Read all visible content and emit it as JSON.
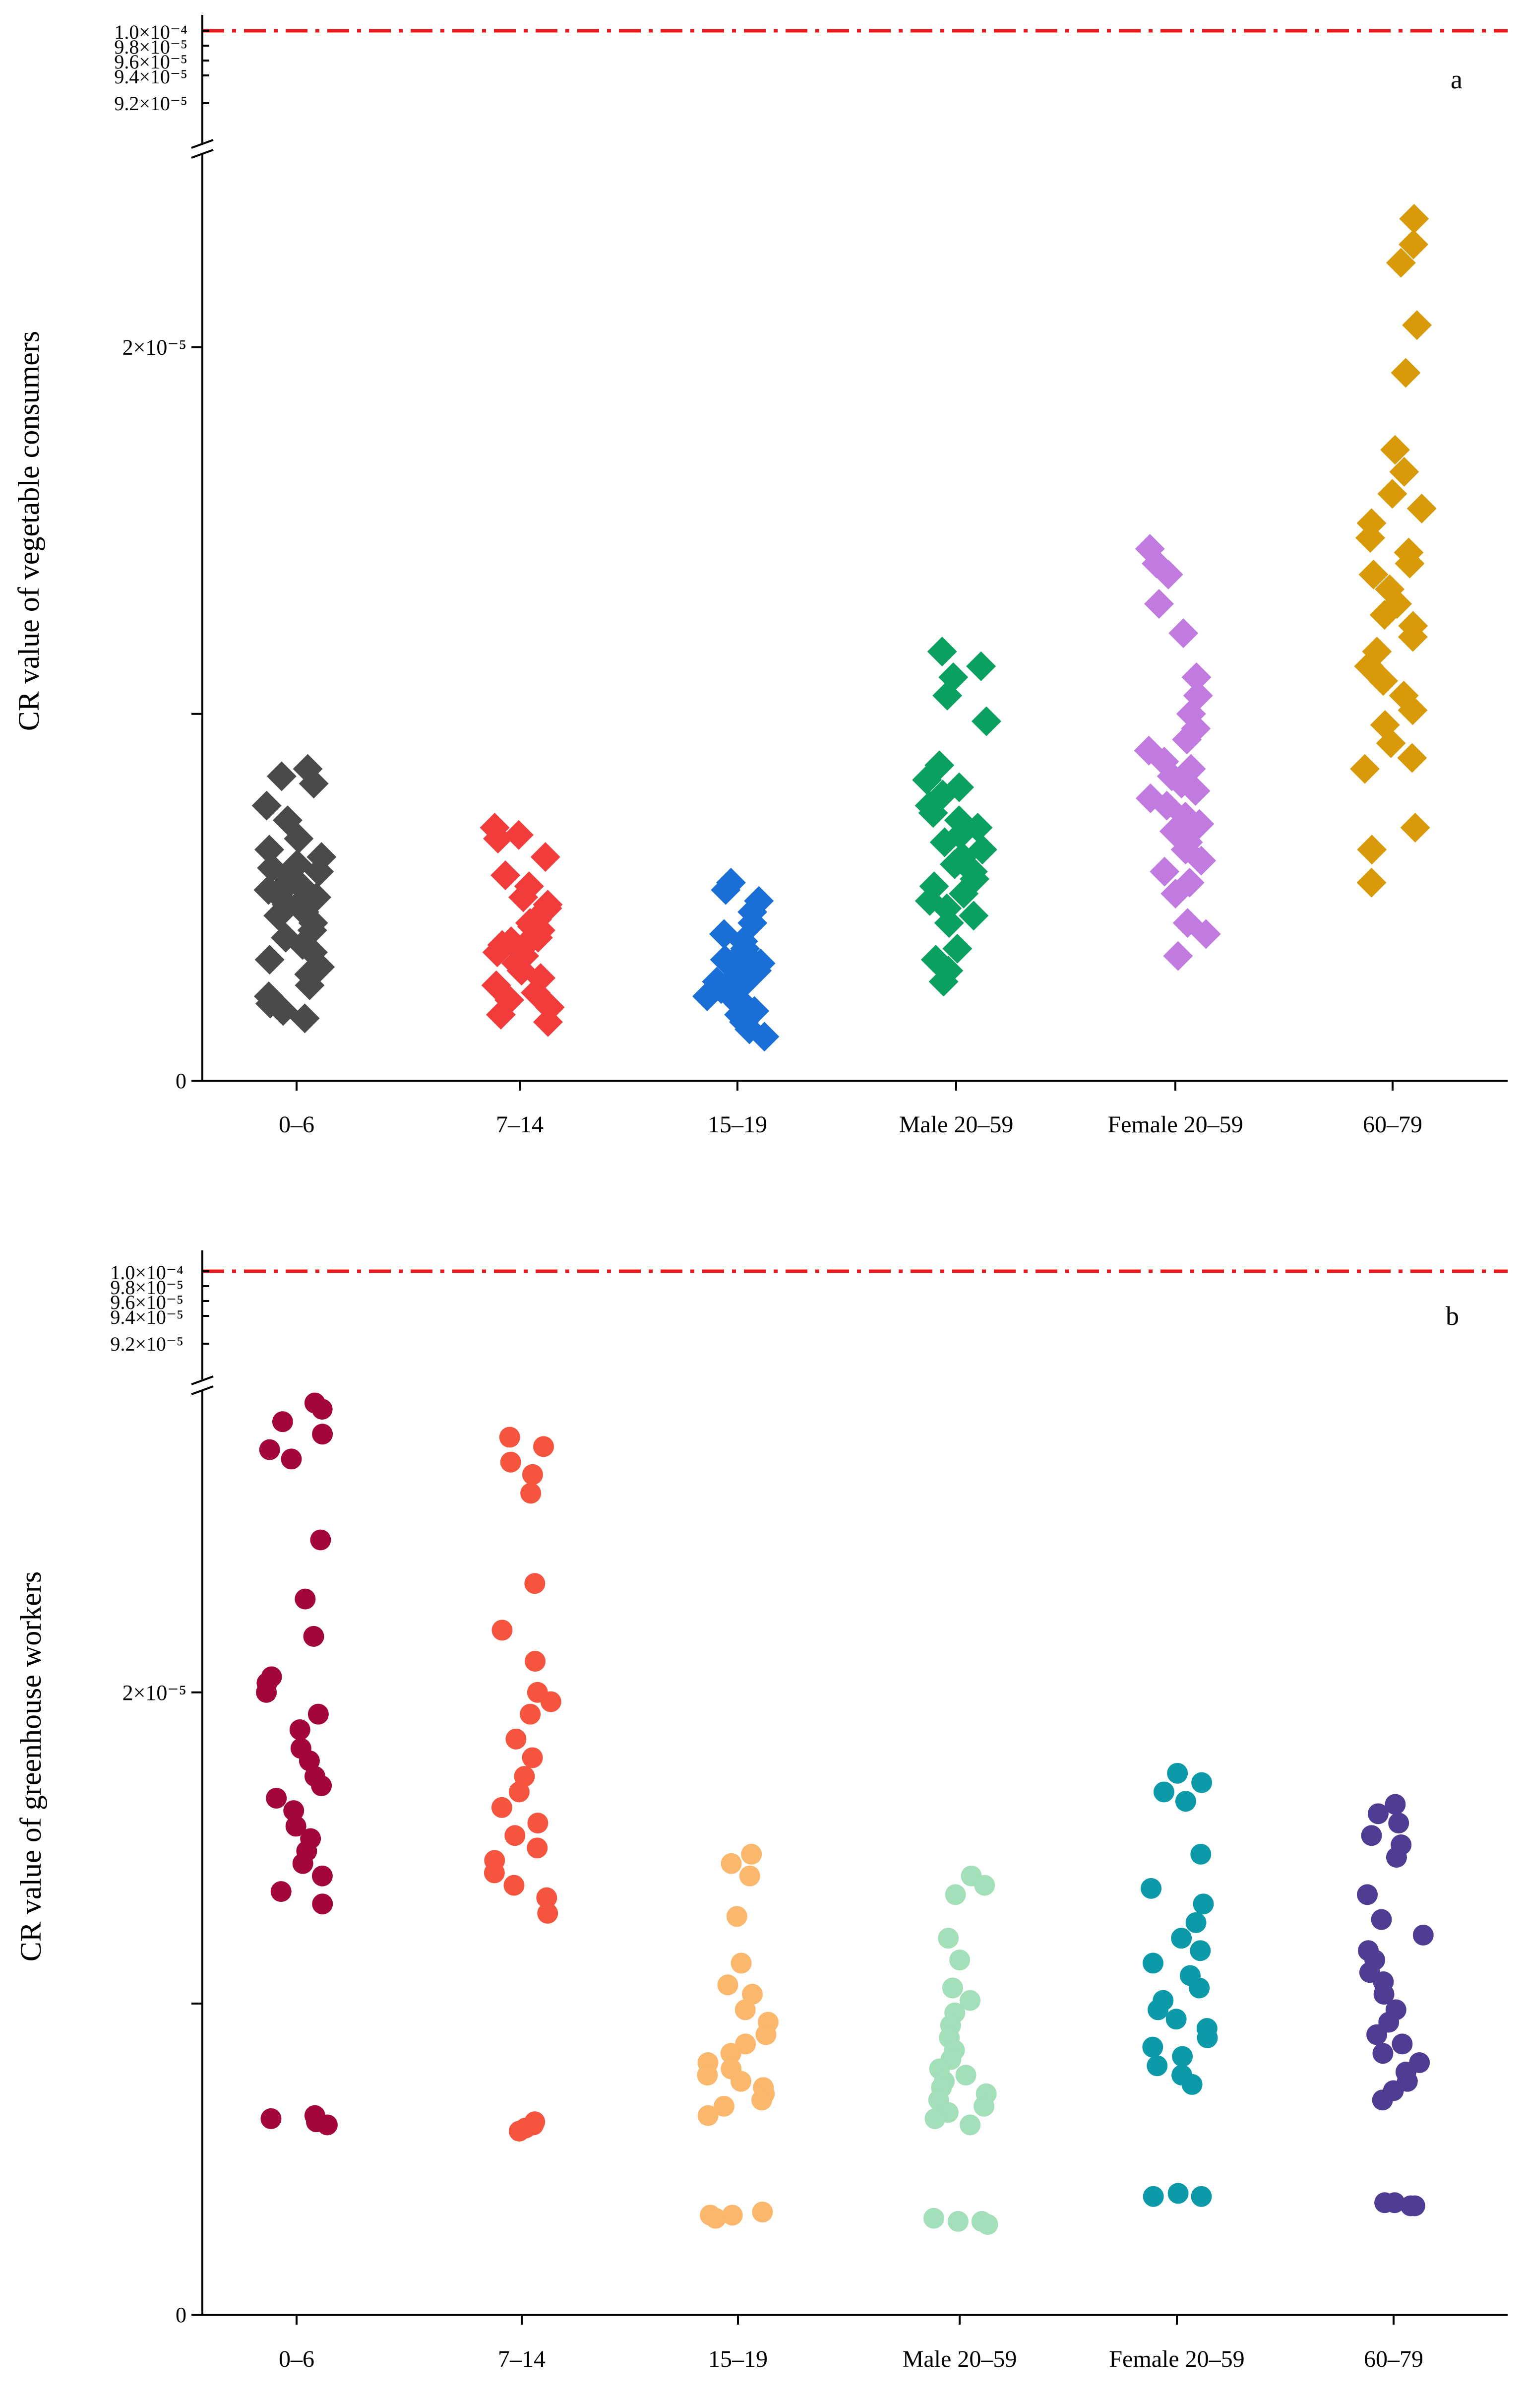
{
  "chart_data": [
    {
      "type": "scatter",
      "panel_label": "a",
      "ylabel": "CR value of vegetable consumers",
      "xlabel": "",
      "categories": [
        "0–6",
        "7–14",
        "15–19",
        "Male 20–59",
        "Female 20–59",
        "60–79"
      ],
      "ylim": [
        0,
        2.5e-05
      ],
      "y_ticks": [
        {
          "value": 0,
          "label": "0"
        },
        {
          "value": 1e-05,
          "label": ""
        },
        {
          "value": 2e-05,
          "label": "2×10⁻⁵"
        }
      ],
      "upper_ticks": [
        "1.0×10⁻⁴",
        "9.8×10⁻⁵",
        "9.6×10⁻⁵",
        "9.4×10⁻⁵",
        "9.2×10⁻⁵"
      ],
      "reference_line": {
        "value": 0.0001,
        "color": "#e5161b"
      },
      "marker": "diamond",
      "colors": [
        "#4a4a4a",
        "#f23b3b",
        "#1a6fd6",
        "#0aa060",
        "#c07ae0",
        "#d99a0a"
      ],
      "series": [
        {
          "name": "0–6",
          "values": [
            8.5e-06,
            8.3e-06,
            8.1e-06,
            7.5e-06,
            7.1e-06,
            6.6e-06,
            6.3e-06,
            6.1e-06,
            5.9e-06,
            5.8e-06,
            5.7e-06,
            5.5e-06,
            5.4e-06,
            5.3e-06,
            5.2e-06,
            5.1e-06,
            5e-06,
            4.9e-06,
            4.8e-06,
            4.6e-06,
            4.5e-06,
            4.3e-06,
            4.1e-06,
            3.9e-06,
            3.7e-06,
            3.5e-06,
            3.3e-06,
            3.1e-06,
            2.9e-06,
            2.6e-06,
            2.3e-06,
            2.1e-06,
            1.9e-06,
            1.7e-06
          ]
        },
        {
          "name": "7–14",
          "values": [
            6.9e-06,
            6.7e-06,
            6.6e-06,
            6.1e-06,
            5.6e-06,
            5.3e-06,
            5e-06,
            4.8e-06,
            4.7e-06,
            4.5e-06,
            4.4e-06,
            4.3e-06,
            4.2e-06,
            4.1e-06,
            4e-06,
            3.9e-06,
            3.8e-06,
            3.7e-06,
            3.6e-06,
            3.5e-06,
            3.4e-06,
            3.2e-06,
            3e-06,
            2.8e-06,
            2.6e-06,
            2.4e-06,
            2.2e-06,
            2e-06,
            1.8e-06,
            1.6e-06
          ]
        },
        {
          "name": "15–19",
          "values": [
            5.4e-06,
            5.2e-06,
            4.9e-06,
            4.6e-06,
            4.3e-06,
            4e-06,
            3.8e-06,
            3.6e-06,
            3.5e-06,
            3.4e-06,
            3.3e-06,
            3.2e-06,
            3.1e-06,
            3e-06,
            2.9e-06,
            2.8e-06,
            2.7e-06,
            2.6e-06,
            2.5e-06,
            2.4e-06,
            2.3e-06,
            2.2e-06,
            2.1e-06,
            2e-06,
            1.9e-06,
            1.8e-06,
            1.6e-06,
            1.4e-06,
            1.2e-06
          ]
        },
        {
          "name": "Male 20–59",
          "values": [
            1.17e-05,
            1.13e-05,
            1.1e-05,
            1.05e-05,
            9.8e-06,
            8.6e-06,
            8.2e-06,
            8e-06,
            7.8e-06,
            7.5e-06,
            7.3e-06,
            7.1e-06,
            6.9e-06,
            6.7e-06,
            6.5e-06,
            6.3e-06,
            6.1e-06,
            5.9e-06,
            5.7e-06,
            5.5e-06,
            5.3e-06,
            5.1e-06,
            4.9e-06,
            4.7e-06,
            4.5e-06,
            4.3e-06,
            3.6e-06,
            3.3e-06,
            3e-06,
            2.7e-06
          ]
        },
        {
          "name": "Female 20–59",
          "values": [
            1.45e-05,
            1.41e-05,
            1.38e-05,
            1.3e-05,
            1.22e-05,
            1.1e-05,
            1.05e-05,
            1e-05,
            9.6e-06,
            9.3e-06,
            9e-06,
            8.7e-06,
            8.5e-06,
            8.3e-06,
            8.1e-06,
            7.9e-06,
            7.7e-06,
            7.5e-06,
            7.2e-06,
            7e-06,
            6.8e-06,
            6.5e-06,
            6.3e-06,
            6e-06,
            5.7e-06,
            5.4e-06,
            5.1e-06,
            4.3e-06,
            4e-06,
            3.4e-06
          ]
        },
        {
          "name": "60–79",
          "values": [
            2.35e-05,
            2.28e-05,
            2.23e-05,
            2.06e-05,
            1.93e-05,
            1.72e-05,
            1.66e-05,
            1.6e-05,
            1.56e-05,
            1.52e-05,
            1.48e-05,
            1.44e-05,
            1.41e-05,
            1.38e-05,
            1.34e-05,
            1.3e-05,
            1.27e-05,
            1.24e-05,
            1.21e-05,
            1.17e-05,
            1.13e-05,
            1.09e-05,
            1.05e-05,
            1.01e-05,
            9.7e-06,
            9.2e-06,
            8.8e-06,
            8.5e-06,
            6.9e-06,
            6.3e-06,
            5.4e-06
          ]
        }
      ]
    },
    {
      "type": "scatter",
      "panel_label": "b",
      "ylabel": "CR value of greenhouse workers",
      "xlabel": "",
      "categories": [
        "0–6",
        "7–14",
        "15–19",
        "Male 20–59",
        "Female 20–59",
        "60–79"
      ],
      "ylim": [
        0,
        2.95e-05
      ],
      "y_ticks": [
        {
          "value": 0,
          "label": "0"
        },
        {
          "value": 1e-05,
          "label": ""
        },
        {
          "value": 2e-05,
          "label": "2×10⁻⁵"
        }
      ],
      "upper_ticks": [
        "1.0×10⁻⁴",
        "9.8×10⁻⁵",
        "9.6×10⁻⁵",
        "9.4×10⁻⁵",
        "9.2×10⁻⁵"
      ],
      "reference_line": {
        "value": 0.0001,
        "color": "#e5161b"
      },
      "marker": "circle",
      "colors": [
        "#a3063a",
        "#f5553e",
        "#fbb76b",
        "#a3dfb8",
        "#0c9aa8",
        "#4e3d93"
      ],
      "series": [
        {
          "name": "0–6",
          "values": [
            2.93e-05,
            2.91e-05,
            2.87e-05,
            2.83e-05,
            2.78e-05,
            2.75e-05,
            2.49e-05,
            2.3e-05,
            2.18e-05,
            2.05e-05,
            2.03e-05,
            2e-05,
            1.93e-05,
            1.88e-05,
            1.82e-05,
            1.78e-05,
            1.73e-05,
            1.7e-05,
            1.66e-05,
            1.62e-05,
            1.57e-05,
            1.53e-05,
            1.49e-05,
            1.45e-05,
            1.41e-05,
            1.36e-05,
            1.32e-05,
            6.4e-06,
            6.3e-06,
            6.2e-06,
            6.1e-06
          ]
        },
        {
          "name": "7–14",
          "values": [
            2.82e-05,
            2.79e-05,
            2.74e-05,
            2.7e-05,
            2.64e-05,
            2.35e-05,
            2.2e-05,
            2.1e-05,
            2e-05,
            1.97e-05,
            1.93e-05,
            1.85e-05,
            1.79e-05,
            1.73e-05,
            1.68e-05,
            1.63e-05,
            1.58e-05,
            1.54e-05,
            1.5e-05,
            1.46e-05,
            1.42e-05,
            1.38e-05,
            1.34e-05,
            1.29e-05,
            6.2e-06,
            6.1e-06,
            6e-06,
            5.9e-06
          ]
        },
        {
          "name": "15–19",
          "values": [
            1.48e-05,
            1.45e-05,
            1.41e-05,
            1.28e-05,
            1.13e-05,
            1.06e-05,
            1.03e-05,
            9.8e-06,
            9.4e-06,
            9e-06,
            8.7e-06,
            8.4e-06,
            8.1e-06,
            7.9e-06,
            7.7e-06,
            7.5e-06,
            7.3e-06,
            7.1e-06,
            6.9e-06,
            6.7e-06,
            6.4e-06,
            3.3e-06,
            3.2e-06,
            3.2e-06,
            3.1e-06
          ]
        },
        {
          "name": "Male 20–59",
          "values": [
            1.41e-05,
            1.38e-05,
            1.35e-05,
            1.21e-05,
            1.14e-05,
            1.05e-05,
            1.01e-05,
            9.7e-06,
            9.3e-06,
            8.9e-06,
            8.5e-06,
            8.2e-06,
            7.9e-06,
            7.7e-06,
            7.5e-06,
            7.3e-06,
            7.1e-06,
            6.9e-06,
            6.7e-06,
            6.5e-06,
            6.3e-06,
            6.1e-06,
            3.1e-06,
            3e-06,
            3e-06,
            2.9e-06
          ]
        },
        {
          "name": "Female 20–59",
          "values": [
            1.74e-05,
            1.71e-05,
            1.68e-05,
            1.65e-05,
            1.48e-05,
            1.37e-05,
            1.32e-05,
            1.26e-05,
            1.21e-05,
            1.17e-05,
            1.13e-05,
            1.09e-05,
            1.05e-05,
            1.01e-05,
            9.8e-06,
            9.5e-06,
            9.2e-06,
            8.9e-06,
            8.6e-06,
            8.3e-06,
            8e-06,
            7.7e-06,
            7.4e-06,
            3.9e-06,
            3.8e-06,
            3.8e-06
          ]
        },
        {
          "name": "60–79",
          "values": [
            1.64e-05,
            1.61e-05,
            1.58e-05,
            1.54e-05,
            1.51e-05,
            1.47e-05,
            1.35e-05,
            1.27e-05,
            1.22e-05,
            1.17e-05,
            1.14e-05,
            1.1e-05,
            1.07e-05,
            1.03e-05,
            9.8e-06,
            9.4e-06,
            9e-06,
            8.7e-06,
            8.4e-06,
            8.1e-06,
            7.8e-06,
            7.5e-06,
            7.2e-06,
            6.9e-06,
            3.6e-06,
            3.6e-06,
            3.5e-06,
            3.5e-06
          ]
        }
      ]
    }
  ]
}
